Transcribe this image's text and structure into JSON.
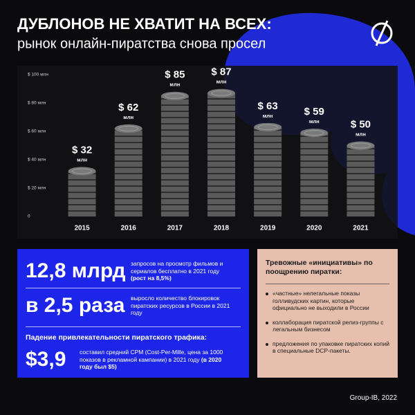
{
  "chart_data": {
    "type": "bar",
    "title": "ДУБЛОНОВ НЕ ХВАТИТ НА ВСЕХ:",
    "subtitle": "рынок онлайн-пиратства снова просел",
    "categories": [
      "2015",
      "2016",
      "2017",
      "2018",
      "2019",
      "2020",
      "2021"
    ],
    "values": [
      32,
      62,
      85,
      87,
      63,
      59,
      50
    ],
    "value_labels": [
      "$ 32",
      "$ 62",
      "$ 85",
      "$ 87",
      "$ 63",
      "$ 59",
      "$ 50"
    ],
    "value_unit": "млн",
    "color": "#5a5a5a",
    "ylim": [
      0,
      100
    ],
    "yticks": [
      0,
      {
        "value": 20,
        "label": "$ 20 млн"
      },
      {
        "value": 40,
        "label": "$ 40 млн"
      },
      {
        "value": 60,
        "label": "$ 60 млн"
      },
      {
        "value": 80,
        "label": "$ 80 млн"
      },
      {
        "value": 100,
        "label": "$ 100 млн"
      }
    ],
    "grid": false
  },
  "facts": [
    {
      "big": "12,8 млрд",
      "desc": "запросов на просмотр фильмов и сериалов бесплатно в 2021 году",
      "desc_bold": "(рост на 8,5%)"
    },
    {
      "big": "в 2,5 раза",
      "desc": "выросло количество блокировок пиратских ресурсов в России в 2021 году",
      "desc_bold": ""
    },
    {
      "heading": "Падение привлекательности пиратского трафика:",
      "big": "$3,9",
      "desc": "составил средний CPM (Cost-Per-Mille, цена за 1000 показов в рекламной кампании) в 2021 году",
      "desc_bold": "(в 2020 году был $5)"
    }
  ],
  "sidebar": {
    "heading": "Тревожные «инициативы» по поощрению пиратки:",
    "items": [
      "«частные» нелегальные показы голливудских картин, которые официально не выходили в России",
      "коллаборация пиратской релиз-группы с легальным бизнесом",
      "предложения по упаковке пиратских копий в специальные DCP-пакеты."
    ]
  },
  "footer": "Group-IB, 2022"
}
